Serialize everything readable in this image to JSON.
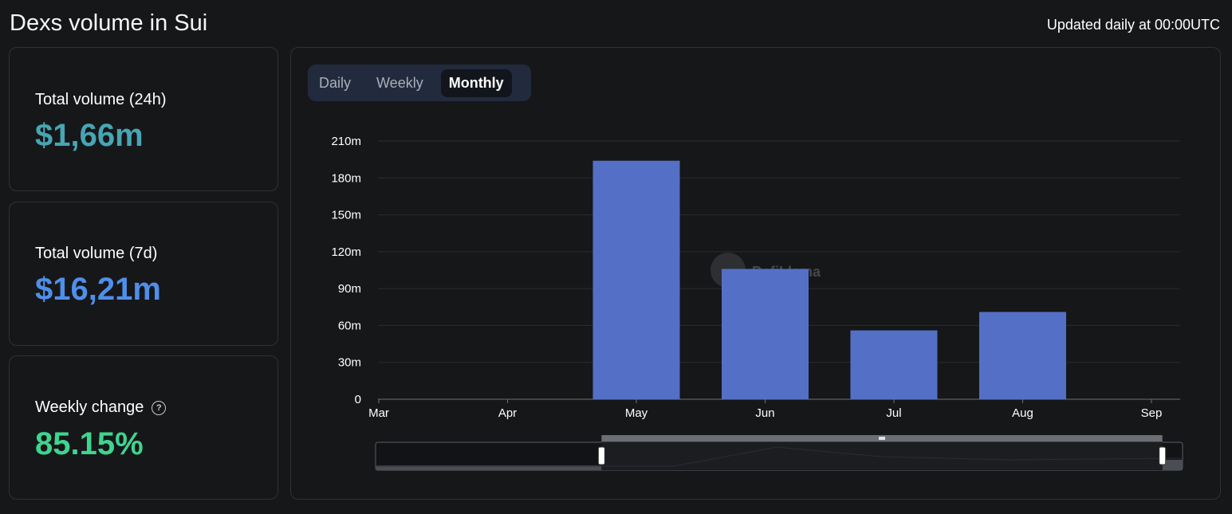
{
  "header": {
    "title": "Dexs volume in Sui",
    "updated": "Updated daily at 00:00UTC"
  },
  "stats": {
    "volume_24h": {
      "label": "Total volume (24h)",
      "value": "$1,66m",
      "color": "#47a5b4"
    },
    "volume_7d": {
      "label": "Total volume (7d)",
      "value": "$16,21m",
      "color": "#4f8fea"
    },
    "weekly_change": {
      "label": "Weekly change",
      "value": "85.15%",
      "color": "#3fd48f"
    }
  },
  "tabs": [
    {
      "label": "Daily",
      "active": false
    },
    {
      "label": "Weekly",
      "active": false
    },
    {
      "label": "Monthly",
      "active": true
    }
  ],
  "watermark": "DefiLlama",
  "colors": {
    "bar": "#5470c6",
    "panel": "#161719",
    "border": "#2f3136"
  },
  "chart_data": {
    "type": "bar",
    "categories": [
      "Mar",
      "Apr",
      "May",
      "Jun",
      "Jul",
      "Aug",
      "Sep"
    ],
    "values": [
      0,
      0,
      194,
      106,
      56,
      71,
      0
    ],
    "yticks": [
      "0",
      "30m",
      "60m",
      "90m",
      "120m",
      "150m",
      "180m",
      "210m"
    ],
    "ylim": [
      0,
      210
    ],
    "unit": "m",
    "grid": true,
    "legend": false,
    "brush_range": [
      0.28,
      0.975
    ]
  }
}
